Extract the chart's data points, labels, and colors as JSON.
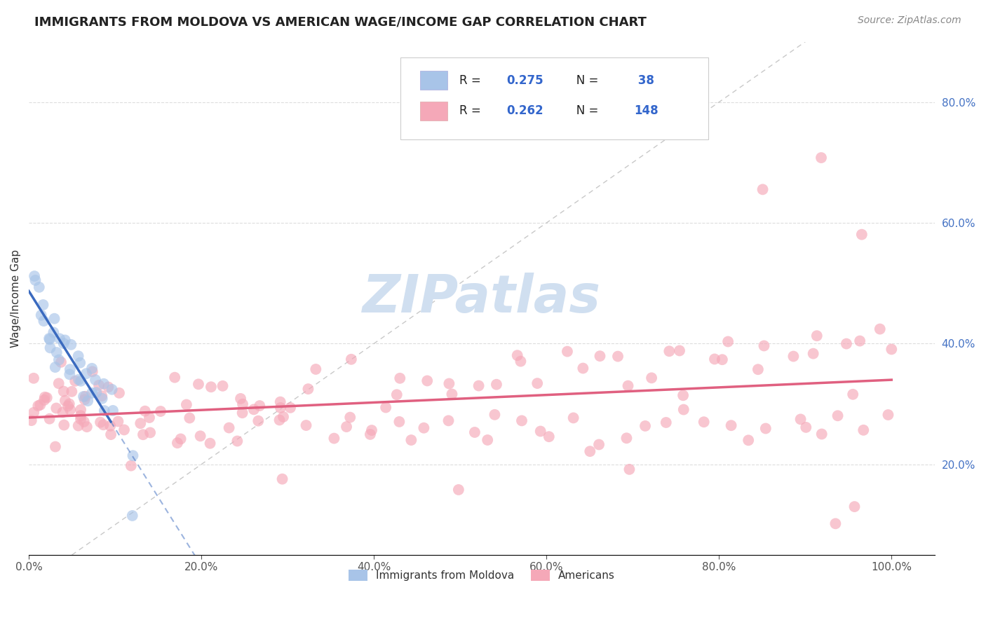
{
  "title": "IMMIGRANTS FROM MOLDOVA VS AMERICAN WAGE/INCOME GAP CORRELATION CHART",
  "source": "Source: ZipAtlas.com",
  "ylabel": "Wage/Income Gap",
  "legend_label1": "Immigrants from Moldova",
  "legend_label2": "Americans",
  "r1": 0.275,
  "n1": 38,
  "r2": 0.262,
  "n2": 148,
  "color_blue": "#a8c4e8",
  "color_pink": "#f5a8b8",
  "color_trendline_blue": "#3a6abf",
  "color_trendline_pink": "#e06080",
  "watermark_color": "#d0dff0",
  "background_color": "#ffffff",
  "xlim": [
    0.0,
    1.05
  ],
  "ylim": [
    0.05,
    0.9
  ],
  "ytick_vals": [
    0.2,
    0.4,
    0.6,
    0.8
  ],
  "xtick_vals": [
    0.0,
    0.2,
    0.4,
    0.6,
    0.8,
    1.0
  ],
  "blue_x": [
    0.005,
    0.008,
    0.01,
    0.012,
    0.015,
    0.018,
    0.02,
    0.022,
    0.025,
    0.028,
    0.03,
    0.032,
    0.035,
    0.038,
    0.04,
    0.042,
    0.045,
    0.048,
    0.05,
    0.052,
    0.055,
    0.058,
    0.06,
    0.062,
    0.065,
    0.068,
    0.07,
    0.072,
    0.075,
    0.078,
    0.08,
    0.082,
    0.085,
    0.09,
    0.095,
    0.1,
    0.12,
    0.095
  ],
  "blue_y": [
    0.545,
    0.5,
    0.475,
    0.46,
    0.45,
    0.445,
    0.43,
    0.425,
    0.42,
    0.415,
    0.41,
    0.405,
    0.4,
    0.395,
    0.39,
    0.385,
    0.38,
    0.375,
    0.37,
    0.365,
    0.36,
    0.355,
    0.35,
    0.345,
    0.34,
    0.335,
    0.33,
    0.325,
    0.32,
    0.315,
    0.31,
    0.305,
    0.3,
    0.295,
    0.29,
    0.285,
    0.28,
    0.115
  ],
  "pink_x": [
    0.005,
    0.008,
    0.01,
    0.012,
    0.015,
    0.018,
    0.02,
    0.022,
    0.025,
    0.028,
    0.03,
    0.032,
    0.035,
    0.038,
    0.04,
    0.042,
    0.045,
    0.048,
    0.05,
    0.052,
    0.055,
    0.058,
    0.06,
    0.062,
    0.065,
    0.068,
    0.07,
    0.072,
    0.075,
    0.078,
    0.08,
    0.085,
    0.09,
    0.095,
    0.1,
    0.105,
    0.11,
    0.115,
    0.12,
    0.13,
    0.14,
    0.15,
    0.16,
    0.17,
    0.18,
    0.19,
    0.2,
    0.21,
    0.22,
    0.23,
    0.24,
    0.25,
    0.26,
    0.27,
    0.28,
    0.29,
    0.3,
    0.32,
    0.34,
    0.36,
    0.38,
    0.4,
    0.42,
    0.44,
    0.46,
    0.48,
    0.5,
    0.52,
    0.54,
    0.56,
    0.58,
    0.6,
    0.62,
    0.64,
    0.66,
    0.68,
    0.7,
    0.72,
    0.74,
    0.76,
    0.78,
    0.8,
    0.82,
    0.84,
    0.86,
    0.88,
    0.9,
    0.92,
    0.94,
    0.96,
    0.98,
    1.0,
    0.05,
    0.07,
    0.09,
    0.11,
    0.13,
    0.15,
    0.17,
    0.19,
    0.21,
    0.23,
    0.25,
    0.27,
    0.29,
    0.31,
    0.33,
    0.35,
    0.37,
    0.39,
    0.41,
    0.43,
    0.45,
    0.47,
    0.49,
    0.51,
    0.53,
    0.55,
    0.57,
    0.59,
    0.61,
    0.63,
    0.65,
    0.67,
    0.69,
    0.71,
    0.73,
    0.75,
    0.77,
    0.79,
    0.81,
    0.83,
    0.85,
    0.87,
    0.89,
    0.91,
    0.93,
    0.95,
    0.97,
    0.99,
    0.3,
    0.5,
    0.7,
    0.85,
    0.9,
    0.95,
    0.96,
    0.97
  ],
  "pink_y": [
    0.3,
    0.31,
    0.295,
    0.305,
    0.32,
    0.29,
    0.315,
    0.3,
    0.31,
    0.295,
    0.305,
    0.315,
    0.29,
    0.3,
    0.285,
    0.295,
    0.31,
    0.3,
    0.285,
    0.295,
    0.3,
    0.285,
    0.295,
    0.31,
    0.285,
    0.295,
    0.3,
    0.285,
    0.29,
    0.3,
    0.295,
    0.28,
    0.29,
    0.285,
    0.3,
    0.295,
    0.285,
    0.29,
    0.295,
    0.28,
    0.285,
    0.29,
    0.295,
    0.285,
    0.29,
    0.295,
    0.285,
    0.29,
    0.295,
    0.285,
    0.29,
    0.295,
    0.285,
    0.29,
    0.295,
    0.285,
    0.3,
    0.305,
    0.31,
    0.315,
    0.31,
    0.315,
    0.32,
    0.325,
    0.33,
    0.335,
    0.34,
    0.345,
    0.35,
    0.355,
    0.36,
    0.355,
    0.36,
    0.35,
    0.355,
    0.36,
    0.355,
    0.36,
    0.365,
    0.37,
    0.375,
    0.37,
    0.365,
    0.375,
    0.38,
    0.385,
    0.39,
    0.38,
    0.375,
    0.38,
    0.385,
    0.39,
    0.27,
    0.28,
    0.26,
    0.275,
    0.265,
    0.27,
    0.26,
    0.27,
    0.265,
    0.275,
    0.265,
    0.27,
    0.26,
    0.275,
    0.265,
    0.27,
    0.26,
    0.27,
    0.265,
    0.275,
    0.265,
    0.27,
    0.26,
    0.27,
    0.265,
    0.275,
    0.265,
    0.27,
    0.26,
    0.27,
    0.265,
    0.275,
    0.265,
    0.27,
    0.26,
    0.27,
    0.265,
    0.275,
    0.265,
    0.27,
    0.26,
    0.27,
    0.265,
    0.275,
    0.265,
    0.27,
    0.26,
    0.27,
    0.155,
    0.17,
    0.185,
    0.655,
    0.705,
    0.125,
    0.58,
    0.115
  ]
}
